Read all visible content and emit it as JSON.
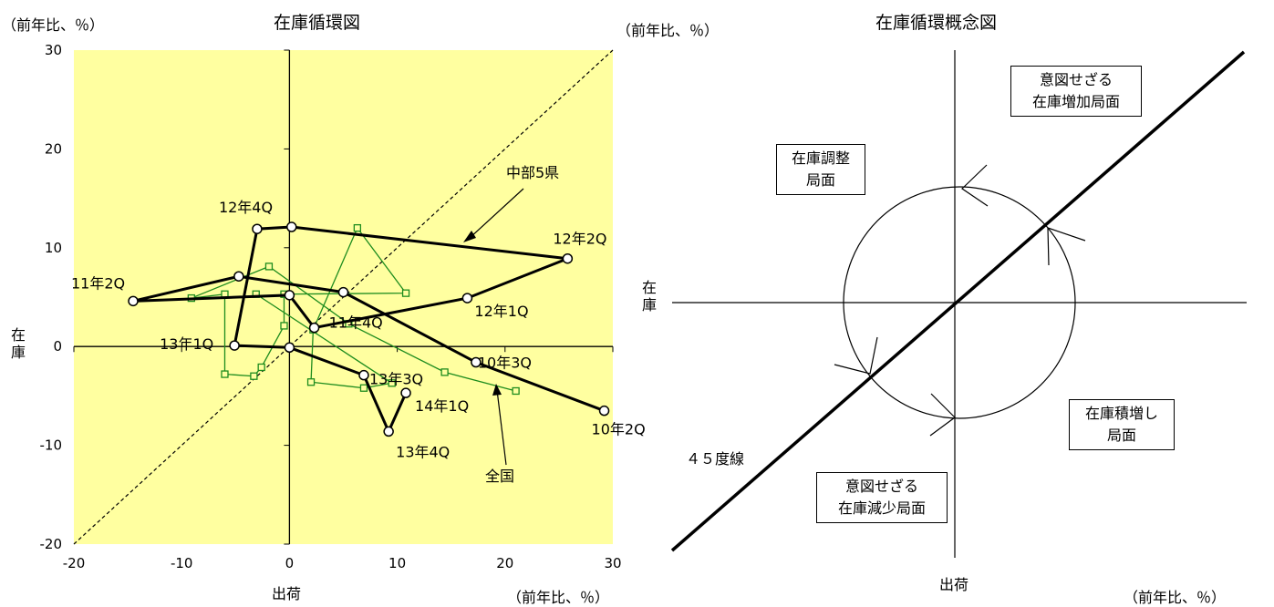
{
  "chart_data": [
    {
      "type": "line",
      "title": "在庫循環図",
      "xlabel": "出荷",
      "ylabel": "在庫",
      "x_unit": "（前年比、％）",
      "y_unit": "（前年比、％）",
      "xlim": [
        -20,
        30
      ],
      "ylim": [
        -20,
        30
      ],
      "xticks": [
        "-20",
        "-10",
        "0",
        "10",
        "20",
        "30"
      ],
      "yticks": [
        "-20",
        "-10",
        "0",
        "10",
        "20",
        "30"
      ],
      "diagonal": "45-degree dashed line",
      "plot_background": "#ffffa0",
      "series": [
        {
          "name": "中部5県",
          "color": "#000000",
          "marker": "circle",
          "points": [
            {
              "x": 29.2,
              "y": -6.5
            },
            {
              "x": 17.3,
              "y": -1.6
            },
            {
              "x": 5.0,
              "y": 5.5
            },
            {
              "x": -4.7,
              "y": 7.1
            },
            {
              "x": -14.5,
              "y": 4.6
            },
            {
              "x": 0.0,
              "y": 5.2
            },
            {
              "x": 2.3,
              "y": 1.9
            },
            {
              "x": 16.5,
              "y": 4.9
            },
            {
              "x": 25.8,
              "y": 8.9
            },
            {
              "x": 0.2,
              "y": 12.1
            },
            {
              "x": -3.0,
              "y": 11.9
            },
            {
              "x": -5.1,
              "y": 0.1
            },
            {
              "x": 0.0,
              "y": -0.1
            },
            {
              "x": 6.9,
              "y": -2.9
            },
            {
              "x": 9.2,
              "y": -8.6
            },
            {
              "x": 10.8,
              "y": -4.7
            }
          ]
        },
        {
          "name": "全国",
          "color": "#1e8c1e",
          "marker": "square",
          "points": [
            {
              "x": 21.0,
              "y": -4.5
            },
            {
              "x": 14.4,
              "y": -2.6
            },
            {
              "x": 5.5,
              "y": 2.3
            },
            {
              "x": -1.9,
              "y": 8.1
            },
            {
              "x": -9.1,
              "y": 4.9
            },
            {
              "x": -6.0,
              "y": 5.3
            },
            {
              "x": -6.0,
              "y": -2.8
            },
            {
              "x": -3.3,
              "y": -3.0
            },
            {
              "x": -2.6,
              "y": -2.1
            },
            {
              "x": -0.5,
              "y": 2.1
            },
            {
              "x": -0.5,
              "y": 5.3
            },
            {
              "x": 10.8,
              "y": 5.4
            },
            {
              "x": 6.3,
              "y": 12.0
            },
            {
              "x": 2.2,
              "y": 1.7
            },
            {
              "x": 2.0,
              "y": -3.6
            },
            {
              "x": 6.9,
              "y": -4.2
            },
            {
              "x": 9.5,
              "y": -3.7
            },
            {
              "x": -3.1,
              "y": 5.3
            }
          ]
        }
      ],
      "point_labels": [
        {
          "text": "10年2Q",
          "x": 29.2,
          "y": -6.5
        },
        {
          "text": "10年3Q",
          "x": 17.3,
          "y": -1.6
        },
        {
          "text": "11年2Q",
          "x": -14.5,
          "y": 4.6
        },
        {
          "text": "11年4Q",
          "x": 2.3,
          "y": 1.9
        },
        {
          "text": "12年1Q",
          "x": 16.5,
          "y": 4.9
        },
        {
          "text": "12年2Q",
          "x": 25.8,
          "y": 8.9
        },
        {
          "text": "12年4Q",
          "x": -3.0,
          "y": 11.9
        },
        {
          "text": "13年1Q",
          "x": -5.1,
          "y": 0.1
        },
        {
          "text": "13年3Q",
          "x": 6.9,
          "y": -2.9
        },
        {
          "text": "13年4Q",
          "x": 9.2,
          "y": -8.6
        },
        {
          "text": "14年1Q",
          "x": 10.8,
          "y": -4.7
        }
      ],
      "annotations": [
        {
          "text": "中部5県"
        },
        {
          "text": "全国"
        }
      ]
    },
    {
      "type": "diagram",
      "title": "在庫循環概念図",
      "xlabel": "出荷",
      "ylabel": "在庫",
      "x_unit": "（前年比、％）",
      "line_label": "４５度線",
      "phases": [
        {
          "lines": [
            "意図せざる",
            "在庫増加局面"
          ]
        },
        {
          "lines": [
            "在庫調整",
            "局面"
          ]
        },
        {
          "lines": [
            "在庫積増し",
            "局面"
          ]
        },
        {
          "lines": [
            "意図せざる",
            "在庫減少局面"
          ]
        }
      ]
    }
  ]
}
